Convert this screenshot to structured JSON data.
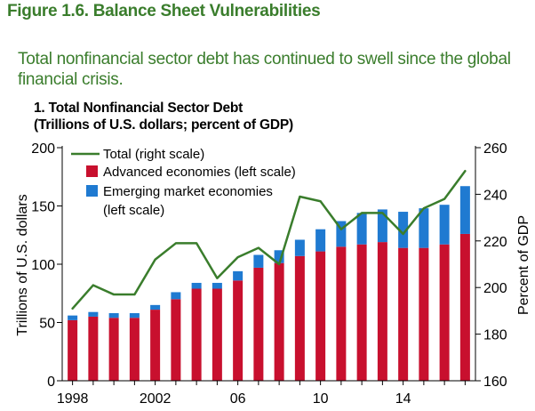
{
  "figure": {
    "title": "Figure 1.6. Balance Sheet Vulnerabilities",
    "subtitle": "Total nonfinancial sector debt has continued to swell since the global financial crisis."
  },
  "panel": {
    "title_line1": "1. Total Nonfinancial Sector Debt",
    "title_line2": "(Trillions of U.S. dollars; percent of GDP)"
  },
  "colors": {
    "advanced": "#c8102e",
    "emerging": "#1f7ad1",
    "total": "#3a7d2c",
    "title_green": "#3a7d2c"
  },
  "chart_data": {
    "type": "bar",
    "stacked": true,
    "x": [
      1998,
      1999,
      2000,
      2001,
      2002,
      2003,
      2004,
      2005,
      2006,
      2007,
      2008,
      2009,
      2010,
      2011,
      2012,
      2013,
      2014,
      2015,
      2016,
      2017
    ],
    "tick_labels": [
      "1998",
      "2002",
      "06",
      "10",
      "14"
    ],
    "tick_positions": [
      1998,
      2002,
      2006,
      2010,
      2014
    ],
    "xlim": [
      1997.5,
      2017.5
    ],
    "ylabel_left": "Trillions of U.S. dollars",
    "ylabel_right": "Percent of GDP",
    "ylim_left": [
      0,
      200
    ],
    "yticks_left": [
      0,
      50,
      100,
      150,
      200
    ],
    "ylim_right": [
      160,
      260
    ],
    "yticks_right": [
      160,
      180,
      200,
      220,
      240,
      260
    ],
    "series": [
      {
        "name": "Advanced economies (left scale)",
        "axis": "left",
        "kind": "bar",
        "values": [
          52,
          55,
          54,
          54,
          61,
          70,
          79,
          79,
          86,
          97,
          101,
          107,
          111,
          115,
          117,
          119,
          114,
          114,
          117,
          126
        ]
      },
      {
        "name": "Emerging market economies (left scale)",
        "axis": "left",
        "kind": "bar",
        "values": [
          4,
          4,
          4,
          4,
          4,
          6,
          5,
          5,
          8,
          11,
          11,
          14,
          19,
          22,
          27,
          28,
          31,
          34,
          34,
          41
        ]
      },
      {
        "name": "Total (right scale)",
        "axis": "right",
        "kind": "line",
        "values": [
          191,
          201,
          197,
          197,
          212,
          219,
          219,
          204,
          213,
          217,
          210,
          239,
          237,
          225,
          232,
          232,
          223,
          234,
          238,
          250
        ]
      }
    ],
    "legend_placement": "top-left"
  }
}
